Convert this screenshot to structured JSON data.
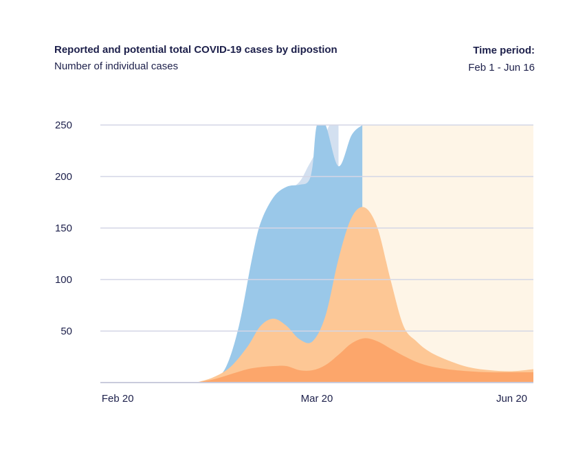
{
  "header": {
    "title": "Reported and potential total COVID-19 cases by dipostion",
    "subtitle": "Number of individual cases",
    "period_label": "Time period:",
    "period_value": "Feb 1 - Jun 16"
  },
  "colors": {
    "grid": "#d4d6e6",
    "axis": "#c9cbdc",
    "text": "#1c1f4a",
    "potential_background": "#fef5e7",
    "blue_light": "#d3e0f0",
    "blue": "#9ac8e9",
    "orange_light": "#fdc795",
    "orange": "#fca66b"
  },
  "chart_data": {
    "type": "area",
    "title": "Reported and potential total COVID-19 cases by dipostion",
    "ylabel": "Number of individual cases",
    "xlabel": "",
    "ylim": [
      0,
      250
    ],
    "xlim": [
      0,
      100
    ],
    "yticks": [
      {
        "value": 250,
        "label": "250"
      },
      {
        "value": 200,
        "label": "200"
      },
      {
        "value": 150,
        "label": "150"
      },
      {
        "value": 100,
        "label": "100"
      },
      {
        "value": 50,
        "label": "50"
      }
    ],
    "xticks": [
      {
        "value": 4,
        "label": "Feb 20"
      },
      {
        "value": 50,
        "label": "Mar 20"
      },
      {
        "value": 95,
        "label": "Jun 20"
      }
    ],
    "series": [
      {
        "name": "potential total (background)",
        "color_key": "potential_background",
        "x": [
          60.5,
          100
        ],
        "y": [
          250,
          250
        ]
      },
      {
        "name": "potential reported",
        "color_key": "blue_light",
        "x": [
          22,
          28,
          32,
          35,
          37,
          40,
          43,
          46,
          48,
          50,
          52,
          53,
          55
        ],
        "y": [
          0,
          5,
          40,
          100,
          150,
          173,
          185,
          195,
          210,
          225,
          240,
          250,
          250
        ]
      },
      {
        "name": "reported",
        "color_key": "blue",
        "x": [
          22,
          26,
          29,
          32,
          35,
          37,
          40,
          43,
          46,
          48,
          49,
          50,
          52,
          55,
          58,
          60.5
        ],
        "y": [
          0,
          3,
          15,
          55,
          120,
          155,
          180,
          190,
          192,
          195,
          210,
          250,
          250,
          210,
          240,
          250
        ]
      },
      {
        "name": "cases (lighter orange)",
        "color_key": "orange_light",
        "x": [
          22,
          26,
          30,
          34,
          37,
          40,
          43,
          46,
          49,
          52,
          55,
          58,
          61,
          64,
          67,
          70,
          73,
          76,
          80,
          85,
          90,
          95,
          100
        ],
        "y": [
          0,
          5,
          15,
          35,
          55,
          62,
          55,
          42,
          40,
          65,
          120,
          160,
          170,
          150,
          100,
          55,
          40,
          30,
          22,
          15,
          12,
          11,
          13
        ]
      },
      {
        "name": "cases (darker orange)",
        "color_key": "orange",
        "x": [
          22,
          26,
          30,
          34,
          37,
          40,
          43,
          46,
          49,
          52,
          55,
          58,
          61,
          64,
          67,
          70,
          73,
          76,
          80,
          85,
          90,
          95,
          100
        ],
        "y": [
          0,
          3,
          8,
          13,
          15,
          16,
          16,
          12,
          12,
          17,
          27,
          38,
          43,
          40,
          33,
          26,
          20,
          16,
          13,
          11,
          10,
          10,
          10
        ]
      }
    ]
  }
}
